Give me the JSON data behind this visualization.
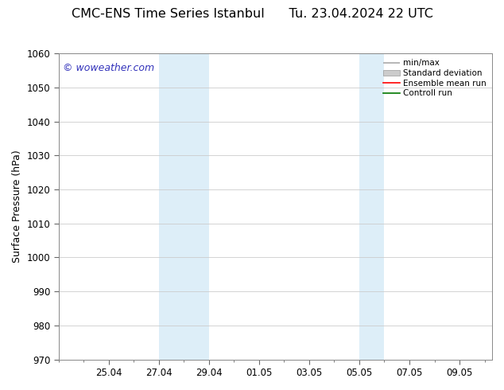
{
  "title_left": "CMC-ENS Time Series Istanbul",
  "title_right": "Tu. 23.04.2024 22 UTC",
  "ylabel": "Surface Pressure (hPa)",
  "ylim": [
    970,
    1060
  ],
  "yticks": [
    970,
    980,
    990,
    1000,
    1010,
    1020,
    1030,
    1040,
    1050,
    1060
  ],
  "xtick_labels": [
    "25.04",
    "27.04",
    "29.04",
    "01.05",
    "03.05",
    "05.05",
    "07.05",
    "09.05"
  ],
  "xtick_positions": [
    2,
    4,
    6,
    8,
    10,
    12,
    14,
    16
  ],
  "xlim": [
    0,
    17.3
  ],
  "shaded_regions": [
    {
      "x_start": 4,
      "x_end": 6,
      "color": "#ddeef8"
    },
    {
      "x_start": 12,
      "x_end": 13,
      "color": "#ddeef8"
    }
  ],
  "watermark_text": "© woweather.com",
  "watermark_color": "#3333bb",
  "background_color": "#ffffff",
  "plot_bg_color": "#ffffff",
  "grid_color": "#cccccc",
  "legend_items": [
    {
      "label": "min/max",
      "color": "#aaaaaa",
      "lw": 1.2
    },
    {
      "label": "Standard deviation",
      "color": "#cccccc",
      "lw": 5
    },
    {
      "label": "Ensemble mean run",
      "color": "#ff0000",
      "lw": 1.2
    },
    {
      "label": "Controll run",
      "color": "#007700",
      "lw": 1.2
    }
  ],
  "title_fontsize": 11.5,
  "axis_fontsize": 9,
  "tick_fontsize": 8.5,
  "watermark_fontsize": 9,
  "legend_fontsize": 7.5
}
